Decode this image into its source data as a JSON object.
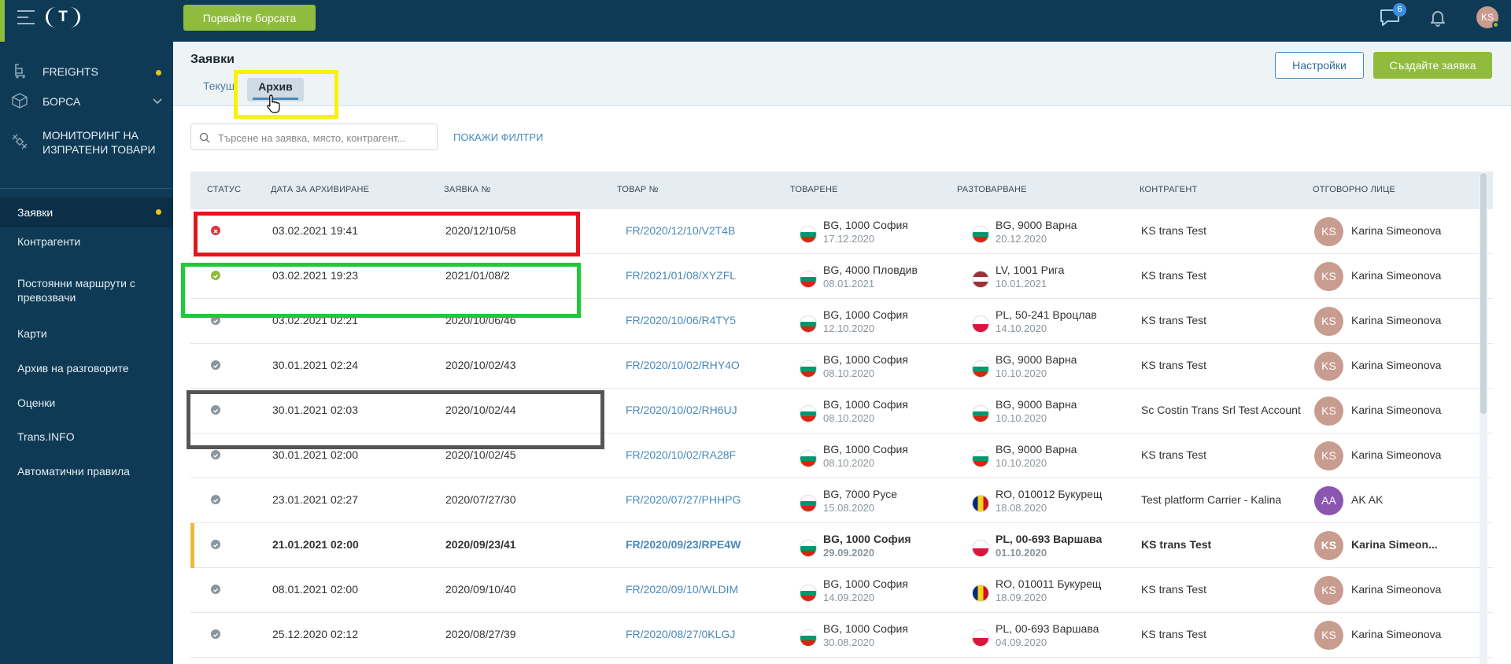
{
  "topbar": {
    "logo_text": "T",
    "exchange_button": "Порвайте борсата",
    "chat_badge": "6",
    "user_initials": "KS"
  },
  "sidebar": {
    "main_items": [
      {
        "label": "FREIGHTS",
        "icon": "freights-icon",
        "dot": true
      },
      {
        "label": "БОРСА",
        "icon": "box-icon",
        "chevron": true
      },
      {
        "label": "МОНИТОРИНГ НА ИЗПРАТЕНИ ТОВАРИ",
        "icon": "satellite-icon"
      }
    ],
    "sub_items": [
      {
        "label": "Заявки",
        "active": true,
        "dot": true
      },
      {
        "label": "Контрагенти"
      },
      {
        "label": "Постоянни маршрути с превозвачи"
      },
      {
        "label": "Карти"
      },
      {
        "label": "Архив на разговорите"
      },
      {
        "label": "Оценки"
      },
      {
        "label": "Trans.INFO"
      },
      {
        "label": "Автоматични правила"
      }
    ]
  },
  "page": {
    "title": "Заявки",
    "tabs": [
      {
        "label": "Текущ"
      },
      {
        "label": "Архив",
        "active": true
      }
    ],
    "settings_button": "Настройки",
    "create_button": "Създайте заявка",
    "search_placeholder": "Търсене на заявка, място, контрагент...",
    "filters_link": "ПОКАЖИ ФИЛТРИ"
  },
  "table": {
    "headers": [
      "СТАТУС",
      "ДАТА ЗА АРХИВИРАНЕ",
      "ЗАЯВКА №",
      "ТОВАР №",
      "ТОВАРЕНЕ",
      "РАЗТОВАРВАНЕ",
      "КОНТРАГЕНТ",
      "ОТГОВОРНО ЛИЦЕ"
    ],
    "rows": [
      {
        "status": "cancelled",
        "archived": "03.02.2021 19:41",
        "order": "2020/12/10/58",
        "freight": "FR/2020/12/10/V2T4B",
        "load_place": "BG, 1000 София",
        "load_date": "17.12.2020",
        "load_flag": "bg",
        "unload_place": "BG, 9000 Варна",
        "unload_date": "20.12.2020",
        "unload_flag": "bg",
        "contractor": "KS trans Test",
        "person_initials": "KS",
        "person": "Karina Simeonova",
        "bold": false
      },
      {
        "status": "completed",
        "archived": "03.02.2021 19:23",
        "order": "2021/01/08/2",
        "freight": "FR/2021/01/08/XYZFL",
        "load_place": "BG, 4000 Пловдив",
        "load_date": "08.01.2021",
        "load_flag": "bg",
        "unload_place": "LV, 1001 Рига",
        "unload_date": "10.01.2021",
        "unload_flag": "lv",
        "contractor": "KS trans Test",
        "person_initials": "KS",
        "person": "Karina Simeonova",
        "bold": false
      },
      {
        "status": "archived",
        "archived": "03.02.2021 02:21",
        "order": "2020/10/06/46",
        "freight": "FR/2020/10/06/R4TY5",
        "load_place": "BG, 1000 София",
        "load_date": "12.10.2020",
        "load_flag": "bg",
        "unload_place": "PL, 50-241 Вроцлав",
        "unload_date": "14.10.2020",
        "unload_flag": "pl",
        "contractor": "KS trans Test",
        "person_initials": "KS",
        "person": "Karina Simeonova",
        "bold": false
      },
      {
        "status": "archived",
        "archived": "30.01.2021 02:24",
        "order": "2020/10/02/43",
        "freight": "FR/2020/10/02/RHY4O",
        "load_place": "BG, 1000 София",
        "load_date": "08.10.2020",
        "load_flag": "bg",
        "unload_place": "BG, 9000 Варна",
        "unload_date": "10.10.2020",
        "unload_flag": "bg",
        "contractor": "KS trans Test",
        "person_initials": "KS",
        "person": "Karina Simeonova",
        "bold": false
      },
      {
        "status": "archived",
        "archived": "30.01.2021 02:03",
        "order": "2020/10/02/44",
        "freight": "FR/2020/10/02/RH6UJ",
        "load_place": "BG, 1000 София",
        "load_date": "08.10.2020",
        "load_flag": "bg",
        "unload_place": "BG, 9000 Варна",
        "unload_date": "10.10.2020",
        "unload_flag": "bg",
        "contractor": "Sc Costin Trans Srl Test Account",
        "person_initials": "KS",
        "person": "Karina Simeonova",
        "bold": false
      },
      {
        "status": "archived",
        "archived": "30.01.2021 02:00",
        "order": "2020/10/02/45",
        "freight": "FR/2020/10/02/RA28F",
        "load_place": "BG, 1000 София",
        "load_date": "08.10.2020",
        "load_flag": "bg",
        "unload_place": "BG, 9000 Варна",
        "unload_date": "10.10.2020",
        "unload_flag": "bg",
        "contractor": "KS trans Test",
        "person_initials": "KS",
        "person": "Karina Simeonova",
        "bold": false
      },
      {
        "status": "archived",
        "archived": "23.01.2021 02:27",
        "order": "2020/07/27/30",
        "freight": "FR/2020/07/27/PHHPG",
        "load_place": "BG, 7000 Русе",
        "load_date": "15.08.2020",
        "load_flag": "bg",
        "unload_place": "RO, 010012 Букурещ",
        "unload_date": "18.08.2020",
        "unload_flag": "ro",
        "contractor": "Test platform Carrier - Kalina",
        "person_initials": "AA",
        "person": "AK AK",
        "bold": false
      },
      {
        "status": "archived",
        "archived": "21.01.2021 02:00",
        "order": "2020/09/23/41",
        "freight": "FR/2020/09/23/RPE4W",
        "load_place": "BG, 1000 София",
        "load_date": "29.09.2020",
        "load_flag": "bg",
        "unload_place": "PL, 00-693 Варшава",
        "unload_date": "01.10.2020",
        "unload_flag": "pl",
        "contractor": "KS trans Test",
        "person_initials": "KS",
        "person": "Karina Simeon...",
        "bold": true
      },
      {
        "status": "archived",
        "archived": "08.01.2021 02:00",
        "order": "2020/09/10/40",
        "freight": "FR/2020/09/10/WLDIM",
        "load_place": "BG, 1000 София",
        "load_date": "14.09.2020",
        "load_flag": "bg",
        "unload_place": "RO, 010011 Букурещ",
        "unload_date": "18.09.2020",
        "unload_flag": "ro",
        "contractor": "KS trans Test",
        "person_initials": "KS",
        "person": "Karina Simeonova",
        "bold": false
      },
      {
        "status": "archived",
        "archived": "25.12.2020 02:12",
        "order": "2020/08/27/39",
        "freight": "FR/2020/08/27/0KLGJ",
        "load_place": "BG, 1000 София",
        "load_date": "30.08.2020",
        "load_flag": "bg",
        "unload_place": "PL, 00-693 Варшава",
        "unload_date": "04.09.2020",
        "unload_flag": "pl",
        "contractor": "KS trans Test",
        "person_initials": "KS",
        "person": "Karina Simeonova",
        "bold": false
      }
    ]
  },
  "colors": {
    "navy": "#0e3a55",
    "green": "#8fbc3c",
    "link": "#4a88b8",
    "status_cancelled": "#d9363e",
    "status_completed": "#8fbc3c",
    "status_archived": "#8a959d",
    "avatar_ks": "#c89c8e",
    "avatar_aa": "#8a56b0",
    "highlight_yellow": "#f7f20a",
    "highlight_red": "#e3151d",
    "highlight_green": "#1ec93a",
    "highlight_gray": "#555555"
  }
}
